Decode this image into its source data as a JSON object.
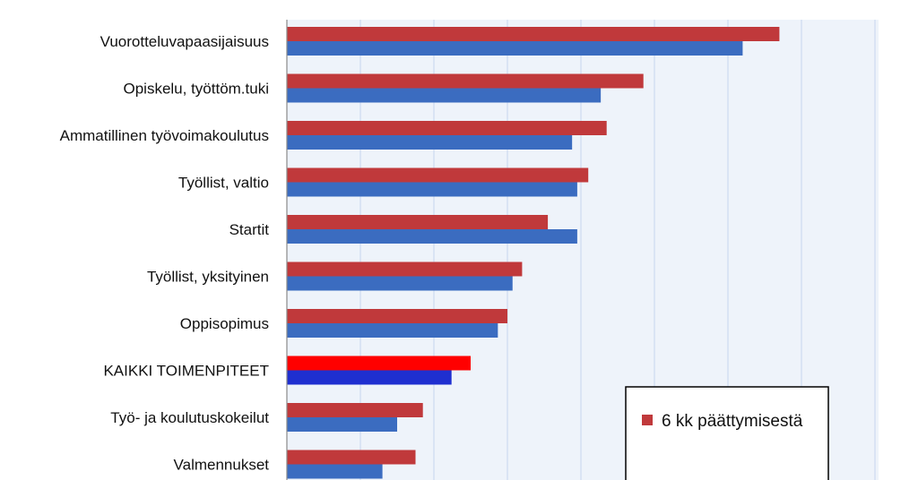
{
  "chart_data": {
    "type": "bar",
    "orientation": "horizontal",
    "categories": [
      "Vuorotteluvapaasijaisuus",
      "Opiskelu, työttöm.tuki",
      "Ammatillinen työvoimakoulutus",
      "Työllist, valtio",
      "Startit",
      "Työllist, yksityinen",
      "Oppisopimus",
      "KAIKKI TOIMENPITEET",
      "Työ- ja koulutuskokeilut",
      "Valmennukset"
    ],
    "series": [
      {
        "name": "6 kk päättymisestä",
        "color": "#C0393B",
        "highlight_color": "#FF0000",
        "values": [
          67,
          48.5,
          43.5,
          41,
          35.5,
          32,
          30,
          25,
          18.5,
          17.5
        ]
      },
      {
        "color": "#3B6CC0",
        "highlight_color": "#1F2FD0",
        "values": [
          62,
          42.7,
          38.8,
          39.5,
          39.5,
          30.7,
          28.7,
          22.4,
          15,
          13
        ]
      }
    ],
    "highlight_category": "KAIKKI TOIMENPITEET",
    "xlim": [
      0,
      80
    ],
    "x_gridline_step": 10,
    "grid": true,
    "legend_position": "bottom-right",
    "background_color": "#EEF3FA",
    "gridline_color": "#C6D6EE"
  }
}
